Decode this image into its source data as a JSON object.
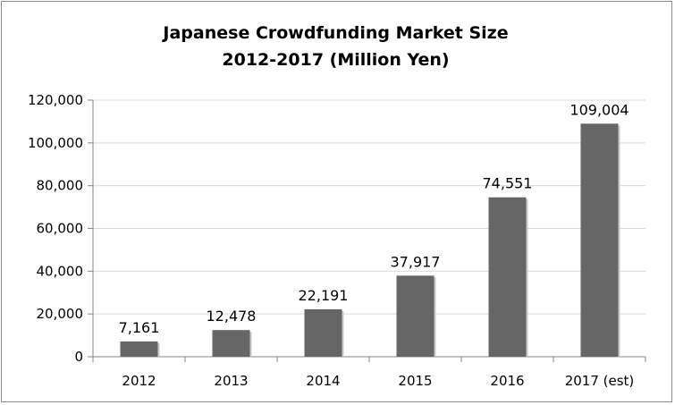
{
  "chart_data": {
    "type": "bar",
    "title_lines": [
      "Japanese Crowdfunding Market Size",
      "2012-2017 (Million Yen)"
    ],
    "categories": [
      "2012",
      "2013",
      "2014",
      "2015",
      "2016",
      "2017 (est)"
    ],
    "values": [
      7161,
      12478,
      22191,
      37917,
      74551,
      109004
    ],
    "data_labels": [
      "7,161",
      "12,478",
      "22,191",
      "37,917",
      "74,551",
      "109,004"
    ],
    "y_ticks": [
      0,
      20000,
      40000,
      60000,
      80000,
      100000,
      120000
    ],
    "y_tick_labels": [
      "0",
      "20,000",
      "40,000",
      "60,000",
      "80,000",
      "100,000",
      "120,000"
    ],
    "ylim": [
      0,
      120000
    ],
    "grid": "horizontal",
    "legend": "none",
    "bar_color": "#666666",
    "axis_color": "#868686",
    "grid_color": "#d9d9d9"
  }
}
